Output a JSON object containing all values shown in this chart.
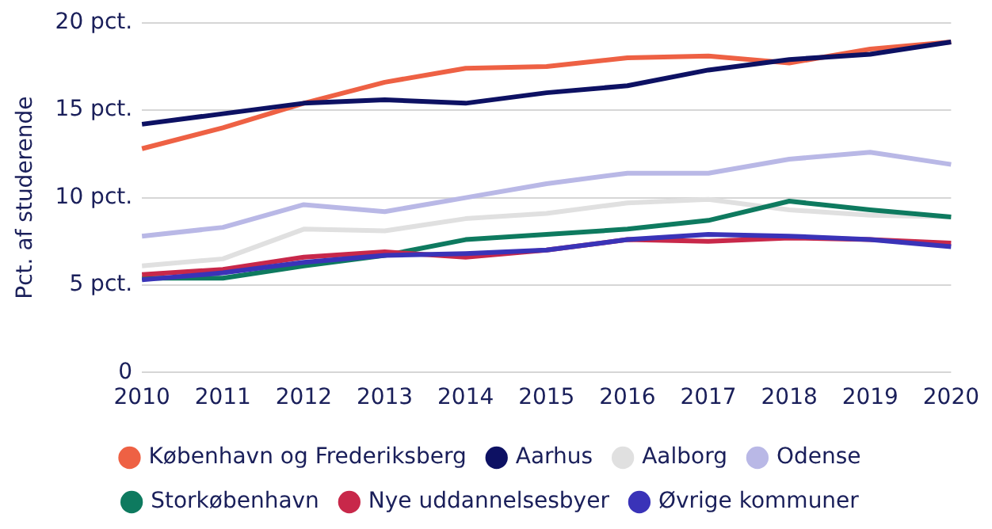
{
  "chart_data": {
    "type": "line",
    "ylabel": "Pct. af studerende",
    "categories": [
      "2010",
      "2011",
      "2012",
      "2013",
      "2014",
      "2015",
      "2016",
      "2017",
      "2018",
      "2019",
      "2020"
    ],
    "series": [
      {
        "name": "København og Frederiksberg",
        "color": "#ee6144",
        "values": [
          12.8,
          14.0,
          15.4,
          16.6,
          17.4,
          17.5,
          18.0,
          18.1,
          17.7,
          18.5,
          18.9
        ]
      },
      {
        "name": "Aarhus",
        "color": "#0d1163",
        "values": [
          14.2,
          14.8,
          15.4,
          15.6,
          15.4,
          16.0,
          16.4,
          17.3,
          17.9,
          18.2,
          18.9
        ]
      },
      {
        "name": "Aalborg",
        "color": "#e0e0e0",
        "values": [
          6.1,
          6.5,
          8.2,
          8.1,
          8.8,
          9.1,
          9.7,
          9.9,
          9.3,
          9.0,
          8.9
        ]
      },
      {
        "name": "Odense",
        "color": "#b9b8e6",
        "values": [
          7.8,
          8.3,
          9.6,
          9.2,
          10.0,
          10.8,
          11.4,
          11.4,
          12.2,
          12.6,
          11.9
        ]
      },
      {
        "name": "Storkøbenhavn",
        "color": "#0e7a5f",
        "values": [
          5.4,
          5.4,
          6.1,
          6.7,
          7.6,
          7.9,
          8.2,
          8.7,
          9.8,
          9.3,
          8.9
        ]
      },
      {
        "name": "Nye uddannelsesbyer",
        "color": "#c8284a",
        "values": [
          5.6,
          5.9,
          6.6,
          6.9,
          6.6,
          7.0,
          7.6,
          7.5,
          7.7,
          7.6,
          7.4
        ]
      },
      {
        "name": "Øvrige kommuner",
        "color": "#3a33b8",
        "values": [
          5.3,
          5.7,
          6.3,
          6.7,
          6.8,
          7.0,
          7.6,
          7.9,
          7.8,
          7.6,
          7.2
        ]
      }
    ],
    "ylim": [
      0,
      20
    ],
    "yticks": [
      {
        "value": 0,
        "label": "0"
      },
      {
        "value": 5,
        "label": "5 pct."
      },
      {
        "value": 10,
        "label": "10 pct."
      },
      {
        "value": 15,
        "label": "15 pct."
      },
      {
        "value": 20,
        "label": "20 pct."
      }
    ],
    "grid": "y",
    "legend": "bottom",
    "marker": "none",
    "line_style": "solid"
  }
}
